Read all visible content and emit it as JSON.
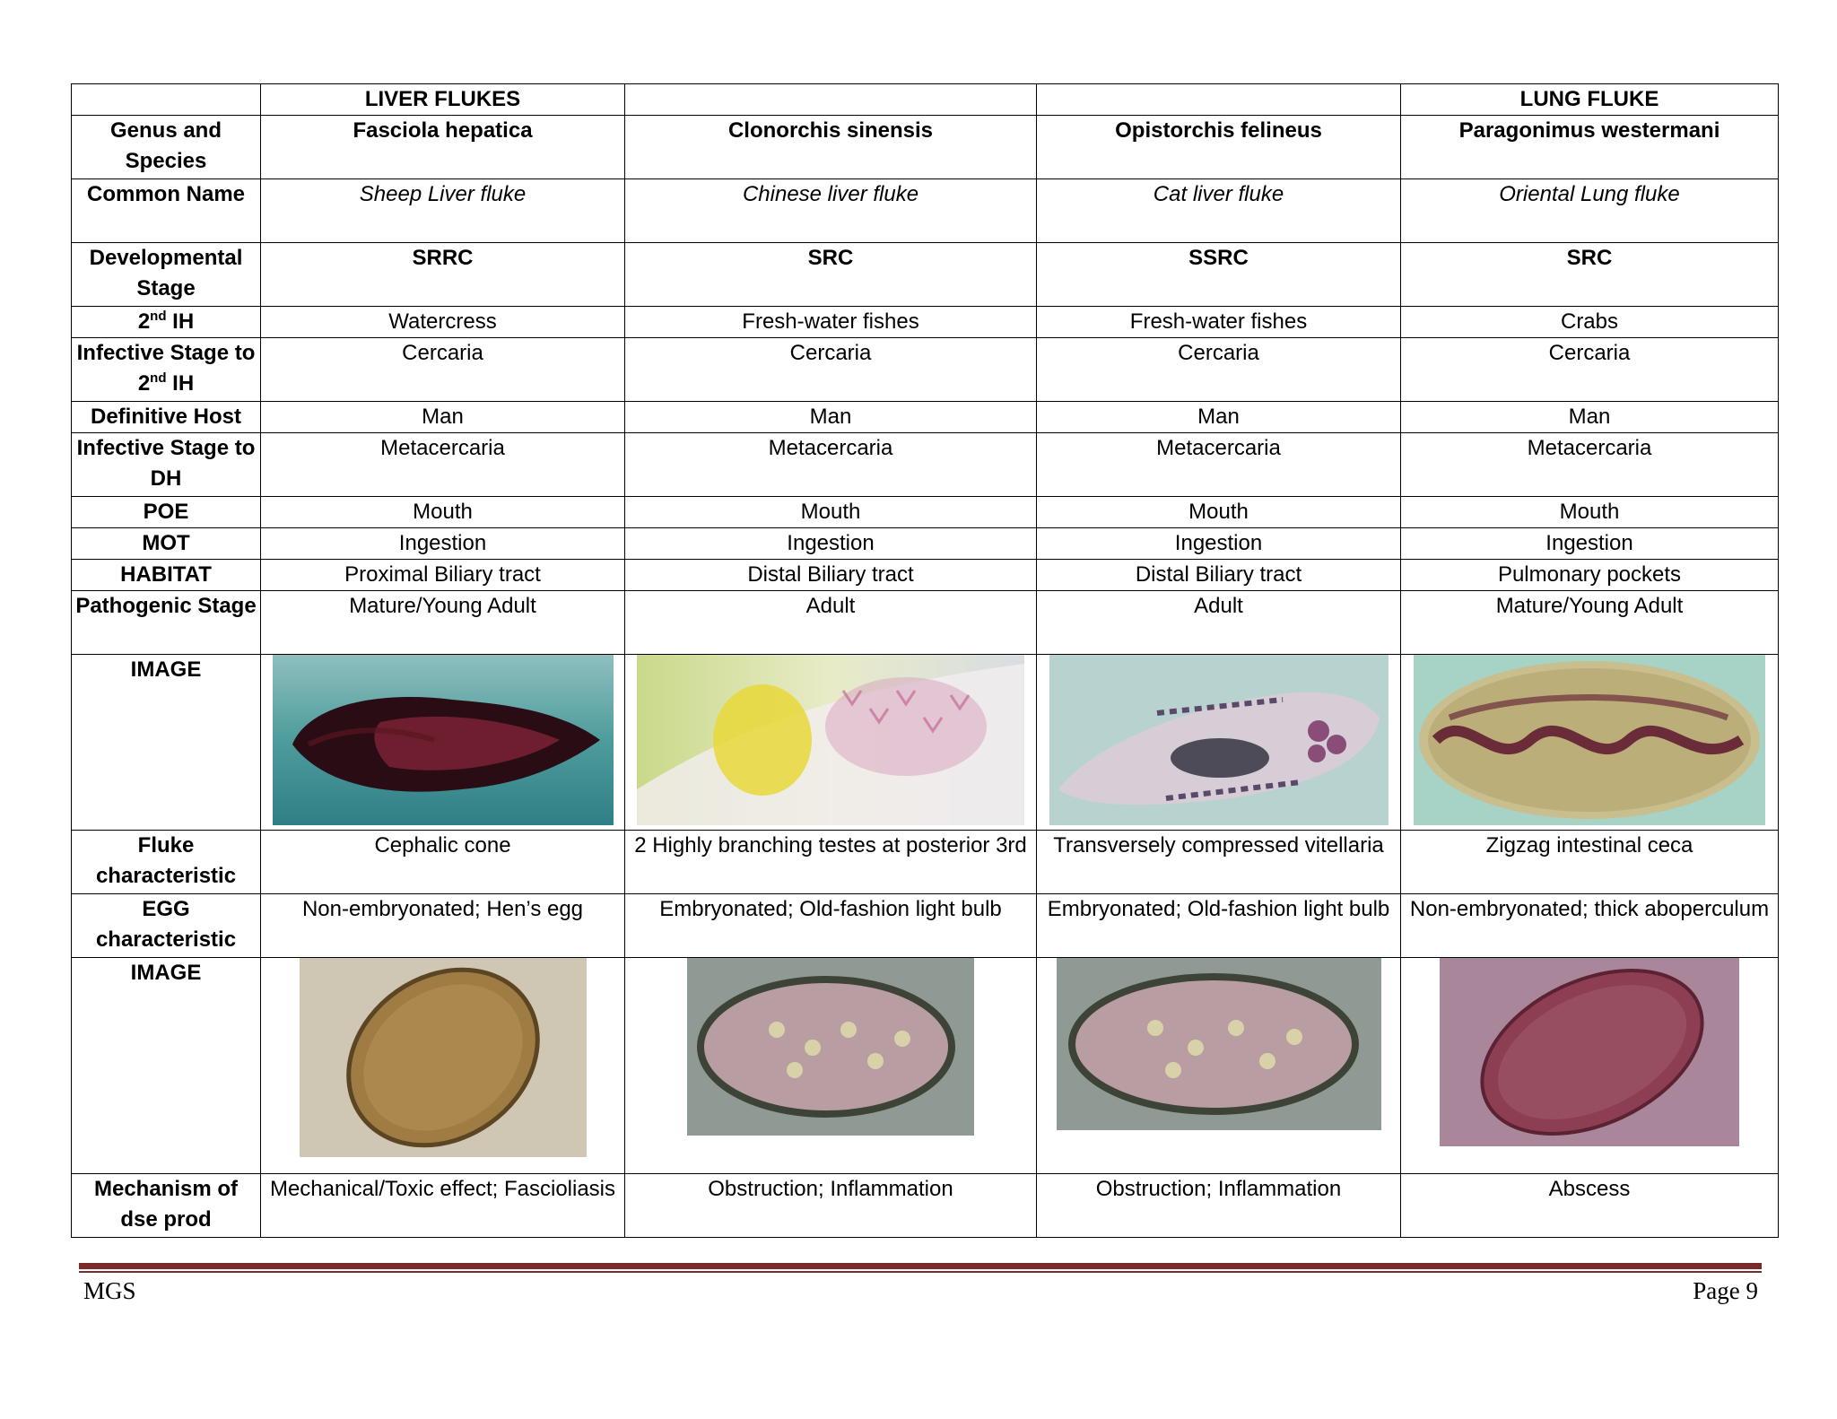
{
  "groups": {
    "liver": "LIVER FLUKES",
    "lung": "LUNG FLUKE"
  },
  "rows": {
    "genus": {
      "label": "Genus and Species",
      "values": [
        "Fasciola hepatica",
        "Clonorchis sinensis",
        "Opistorchis felineus",
        "Paragonimus westermani"
      ]
    },
    "common": {
      "label": "Common Name",
      "values": [
        "Sheep Liver fluke",
        "Chinese liver fluke",
        "Cat liver fluke",
        "Oriental Lung fluke"
      ]
    },
    "dev": {
      "label": "Developmental Stage",
      "values": [
        "SRRC",
        "SRC",
        "SSRC",
        "SRC"
      ]
    },
    "ih2": {
      "label_pre": "2",
      "label_sup": "nd",
      "label_post": " IH",
      "values": [
        "Watercress",
        "Fresh-water fishes",
        "Fresh-water fishes",
        "Crabs"
      ]
    },
    "inf_ih": {
      "label_pre": "Infective Stage to 2",
      "label_sup": "nd",
      "label_post": " IH",
      "values": [
        "Cercaria",
        "Cercaria",
        "Cercaria",
        "Cercaria"
      ]
    },
    "dh": {
      "label": "Definitive Host",
      "values": [
        "Man",
        "Man",
        "Man",
        "Man"
      ]
    },
    "inf_dh": {
      "label": "Infective Stage to DH",
      "values": [
        "Metacercaria",
        "Metacercaria",
        "Metacercaria",
        "Metacercaria"
      ]
    },
    "poe": {
      "label": "POE",
      "values": [
        "Mouth",
        "Mouth",
        "Mouth",
        "Mouth"
      ]
    },
    "mot": {
      "label": "MOT",
      "values": [
        "Ingestion",
        "Ingestion",
        "Ingestion",
        "Ingestion"
      ]
    },
    "habitat": {
      "label": "HABITAT",
      "values": [
        "Proximal Biliary tract",
        "Distal Biliary tract",
        "Distal Biliary tract",
        "Pulmonary pockets"
      ]
    },
    "patho": {
      "label": "Pathogenic Stage",
      "values": [
        "Mature/Young Adult",
        "Adult",
        "Adult",
        "Mature/Young Adult"
      ]
    },
    "image1": {
      "label": "IMAGE"
    },
    "fluke_char": {
      "label": "Fluke characteristic",
      "values": [
        "Cephalic cone",
        "2 Highly branching testes at posterior 3rd",
        "Transversely compressed vitellaria",
        "Zigzag intestinal ceca"
      ]
    },
    "egg_char": {
      "label": "EGG characteristic",
      "values": [
        "Non-embryonated; Hen’s egg",
        "Embryonated; Old-fashion light bulb",
        "Embryonated; Old-fashion light bulb",
        "Non-embryonated; thick aboperculum"
      ]
    },
    "image2": {
      "label": "IMAGE"
    },
    "mech": {
      "label": "Mechanism of dse prod",
      "values": [
        "Mechanical/Toxic effect; Fascioliasis",
        "Obstruction; Inflammation",
        "Obstruction; Inflammation",
        "Abscess"
      ]
    }
  },
  "footer": {
    "left": "MGS",
    "right": "Page 9"
  }
}
